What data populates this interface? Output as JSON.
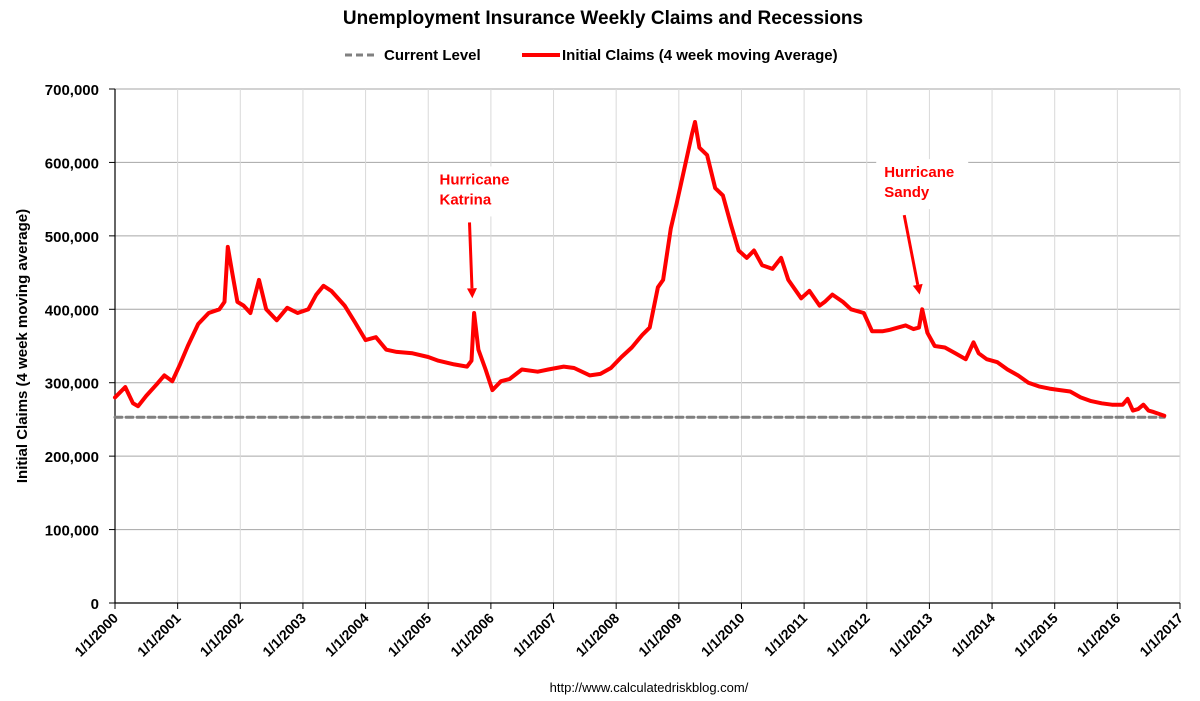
{
  "chart_data": {
    "type": "line",
    "title": "Unemployment Insurance Weekly Claims and Recessions",
    "ylabel": "Initial Claims (4 week moving average)",
    "xlabel": "",
    "ylim": [
      0,
      700000
    ],
    "y_ticks": [
      0,
      100000,
      200000,
      300000,
      400000,
      500000,
      600000,
      700000
    ],
    "y_tick_labels": [
      "0",
      "100,000",
      "200,000",
      "300,000",
      "400,000",
      "500,000",
      "600,000",
      "700,000"
    ],
    "x_range": [
      "2000-01-01",
      "2017-01-01"
    ],
    "x_tick_labels": [
      "1/1/2000",
      "1/1/2001",
      "1/1/2002",
      "1/1/2003",
      "1/1/2004",
      "1/1/2005",
      "1/1/2006",
      "1/1/2007",
      "1/1/2008",
      "1/1/2009",
      "1/1/2010",
      "1/1/2011",
      "1/1/2012",
      "1/1/2013",
      "1/1/2014",
      "1/1/2015",
      "1/1/2016",
      "1/1/2017"
    ],
    "grid": "horizontal",
    "legend_position": "top",
    "series": [
      {
        "name": "Current Level",
        "style": "dashed",
        "color": "#808080",
        "x": [
          "2000-01-01",
          "2016-10-01"
        ],
        "values": [
          253000,
          253000
        ]
      },
      {
        "name": "Initial Claims (4 week moving Average)",
        "style": "solid",
        "color": "#ff0000",
        "x": [
          "2000-01-01",
          "2000-03-01",
          "2000-04-15",
          "2000-05-15",
          "2000-07-01",
          "2000-09-01",
          "2000-10-15",
          "2000-12-01",
          "2001-01-15",
          "2001-03-01",
          "2001-05-01",
          "2001-07-01",
          "2001-09-01",
          "2001-10-01",
          "2001-10-20",
          "2001-11-15",
          "2001-12-15",
          "2002-01-20",
          "2002-03-01",
          "2002-04-20",
          "2002-06-01",
          "2002-08-01",
          "2002-10-01",
          "2002-12-01",
          "2003-02-01",
          "2003-03-20",
          "2003-05-01",
          "2003-06-15",
          "2003-09-01",
          "2003-11-01",
          "2004-01-01",
          "2004-03-01",
          "2004-05-01",
          "2004-07-01",
          "2004-10-01",
          "2005-01-01",
          "2005-03-01",
          "2005-06-01",
          "2005-08-15",
          "2005-09-10",
          "2005-09-25",
          "2005-10-20",
          "2005-12-01",
          "2006-01-10",
          "2006-03-01",
          "2006-04-20",
          "2006-07-01",
          "2006-10-01",
          "2006-12-01",
          "2007-03-01",
          "2007-05-01",
          "2007-08-01",
          "2007-10-01",
          "2007-12-01",
          "2008-02-01",
          "2008-04-01",
          "2008-06-01",
          "2008-07-15",
          "2008-09-01",
          "2008-10-01",
          "2008-11-15",
          "2008-12-20",
          "2009-02-01",
          "2009-03-20",
          "2009-04-05",
          "2009-05-01",
          "2009-06-15",
          "2009-08-01",
          "2009-09-15",
          "2009-11-01",
          "2009-12-15",
          "2010-02-01",
          "2010-03-15",
          "2010-05-01",
          "2010-07-01",
          "2010-08-20",
          "2010-10-01",
          "2010-12-15",
          "2011-02-01",
          "2011-04-01",
          "2011-05-01",
          "2011-06-15",
          "2011-08-15",
          "2011-10-01",
          "2011-12-15",
          "2012-02-01",
          "2012-04-01",
          "2012-05-15",
          "2012-07-01",
          "2012-08-15",
          "2012-09-30",
          "2012-11-01",
          "2012-11-20",
          "2012-12-20",
          "2013-02-01",
          "2013-04-01",
          "2013-06-01",
          "2013-08-01",
          "2013-09-15",
          "2013-10-15",
          "2013-12-01",
          "2014-02-01",
          "2014-04-01",
          "2014-06-01",
          "2014-08-01",
          "2014-10-01",
          "2014-12-01",
          "2015-02-01",
          "2015-04-01",
          "2015-06-01",
          "2015-08-01",
          "2015-10-01",
          "2015-12-01",
          "2016-02-01",
          "2016-03-01",
          "2016-04-01",
          "2016-05-01",
          "2016-06-01",
          "2016-07-01",
          "2016-08-01",
          "2016-10-01"
        ],
        "values": [
          280000,
          294000,
          272000,
          268000,
          282000,
          298000,
          310000,
          302000,
          325000,
          350000,
          380000,
          395000,
          400000,
          410000,
          485000,
          450000,
          410000,
          405000,
          395000,
          440000,
          400000,
          385000,
          402000,
          395000,
          400000,
          420000,
          432000,
          425000,
          405000,
          382000,
          358000,
          362000,
          345000,
          342000,
          340000,
          335000,
          330000,
          325000,
          322000,
          330000,
          395000,
          345000,
          318000,
          290000,
          302000,
          305000,
          318000,
          315000,
          318000,
          322000,
          320000,
          310000,
          312000,
          320000,
          335000,
          348000,
          365000,
          375000,
          430000,
          440000,
          510000,
          545000,
          590000,
          640000,
          655000,
          620000,
          610000,
          565000,
          555000,
          515000,
          480000,
          470000,
          480000,
          460000,
          455000,
          470000,
          440000,
          415000,
          425000,
          405000,
          410000,
          420000,
          410000,
          400000,
          395000,
          370000,
          370000,
          372000,
          375000,
          378000,
          373000,
          375000,
          400000,
          368000,
          350000,
          348000,
          340000,
          332000,
          355000,
          340000,
          332000,
          328000,
          318000,
          310000,
          300000,
          295000,
          292000,
          290000,
          288000,
          280000,
          275000,
          272000,
          270000,
          270000,
          278000,
          262000,
          264000,
          270000,
          262000,
          260000,
          255000
        ]
      }
    ],
    "annotations": [
      {
        "text_lines": [
          "Hurricane",
          "Katrina"
        ],
        "arrow_to_x": "2005-09-15",
        "arrow_to_y": 415000,
        "label_x": "2005-10-15",
        "label_y": 570000
      },
      {
        "text_lines": [
          "Hurricane",
          "Sandy"
        ],
        "arrow_to_x": "2012-11-05",
        "arrow_to_y": 420000,
        "label_x": "2012-11-20",
        "label_y": 580000
      }
    ]
  },
  "footer": {
    "source": "http://www.calculatedriskblog.com/"
  }
}
